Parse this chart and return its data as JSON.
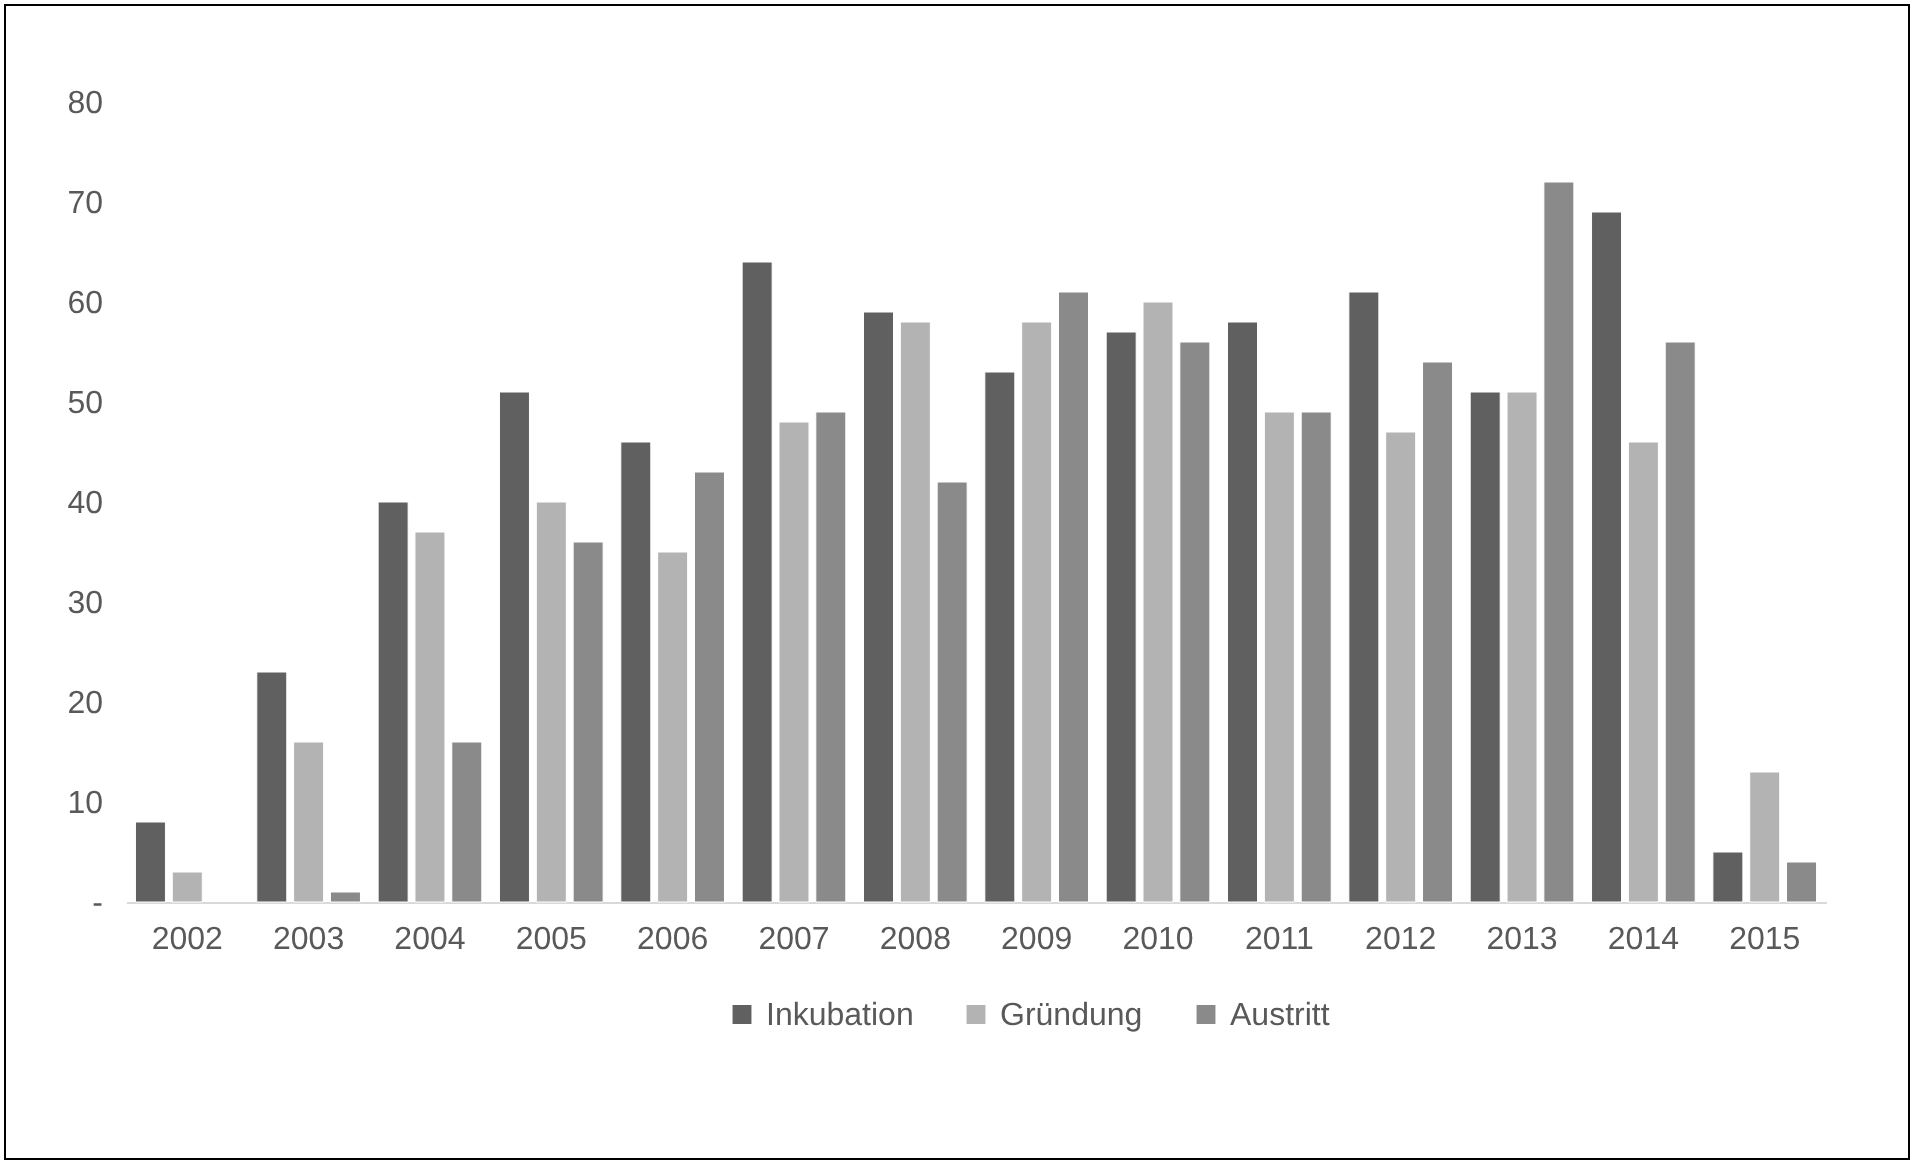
{
  "chart_data": {
    "type": "bar",
    "categories": [
      "2002",
      "2003",
      "2004",
      "2005",
      "2006",
      "2007",
      "2008",
      "2009",
      "2010",
      "2011",
      "2012",
      "2013",
      "2014",
      "2015"
    ],
    "series": [
      {
        "name": "Inkubation",
        "color": "#606060",
        "values": [
          8,
          23,
          40,
          51,
          46,
          64,
          59,
          53,
          57,
          58,
          61,
          51,
          69,
          5
        ]
      },
      {
        "name": "Gründung",
        "color": "#b3b3b3",
        "values": [
          3,
          16,
          37,
          40,
          35,
          48,
          58,
          58,
          60,
          49,
          47,
          51,
          46,
          13
        ]
      },
      {
        "name": "Austritt",
        "color": "#8a8a8a",
        "values": [
          null,
          1,
          16,
          36,
          43,
          49,
          42,
          61,
          56,
          49,
          54,
          72,
          56,
          4
        ]
      }
    ],
    "ylim": [
      0,
      80
    ],
    "yticks": [
      {
        "value": 0,
        "label": "-"
      },
      10,
      20,
      30,
      40,
      50,
      60,
      70,
      80
    ],
    "grid": false,
    "legend": "bottom"
  }
}
